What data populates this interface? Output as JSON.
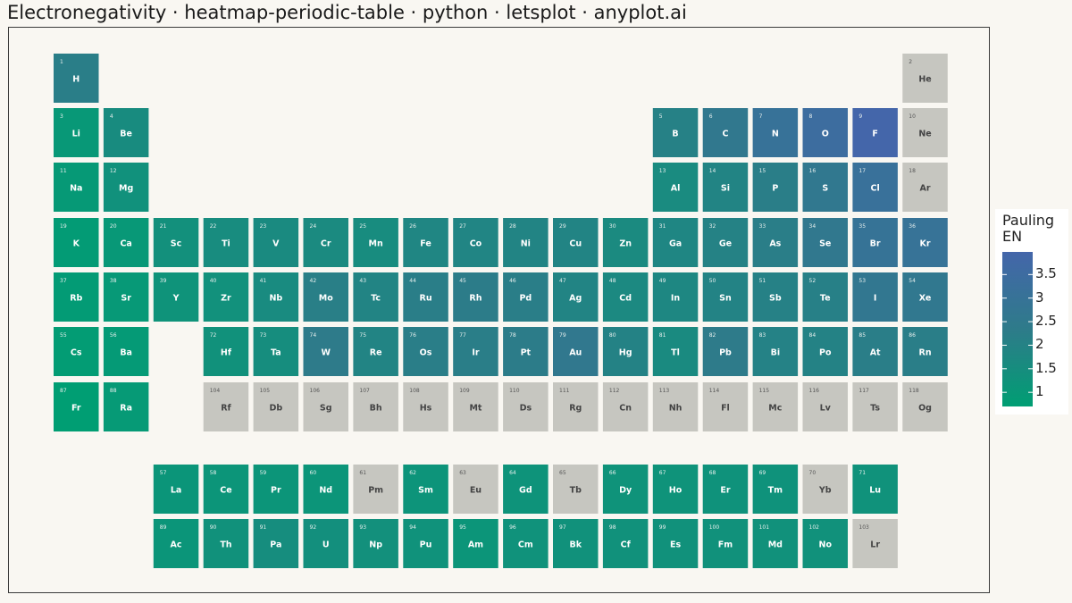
{
  "title": "Electronegativity · heatmap-periodic-table · python · letsplot · anyplot.ai",
  "colors": {
    "low": "#009e73",
    "mid": "#2e7b8a",
    "high": "#4466aa",
    "missing": "#c6c6c0",
    "background": "#f9f7f2"
  },
  "legend": {
    "title_line1": "Pauling",
    "title_line2": "EN",
    "ticks": [
      "3.5",
      "3",
      "2.5",
      "2",
      "1.5",
      "1"
    ],
    "range": [
      0.7,
      3.98
    ]
  },
  "chart_data": {
    "type": "heatmap",
    "title": "Electronegativity · heatmap-periodic-table · python · letsplot · anyplot.ai",
    "value_label": "Pauling EN",
    "elements": [
      {
        "z": 1,
        "s": "H",
        "row": 1,
        "col": 1,
        "en": 2.2
      },
      {
        "z": 2,
        "s": "He",
        "row": 1,
        "col": 18,
        "en": null
      },
      {
        "z": 3,
        "s": "Li",
        "row": 2,
        "col": 1,
        "en": 0.98
      },
      {
        "z": 4,
        "s": "Be",
        "row": 2,
        "col": 2,
        "en": 1.57
      },
      {
        "z": 5,
        "s": "B",
        "row": 2,
        "col": 13,
        "en": 2.04
      },
      {
        "z": 6,
        "s": "C",
        "row": 2,
        "col": 14,
        "en": 2.55
      },
      {
        "z": 7,
        "s": "N",
        "row": 2,
        "col": 15,
        "en": 3.04
      },
      {
        "z": 8,
        "s": "O",
        "row": 2,
        "col": 16,
        "en": 3.44
      },
      {
        "z": 9,
        "s": "F",
        "row": 2,
        "col": 17,
        "en": 3.98
      },
      {
        "z": 10,
        "s": "Ne",
        "row": 2,
        "col": 18,
        "en": null
      },
      {
        "z": 11,
        "s": "Na",
        "row": 3,
        "col": 1,
        "en": 0.93
      },
      {
        "z": 12,
        "s": "Mg",
        "row": 3,
        "col": 2,
        "en": 1.31
      },
      {
        "z": 13,
        "s": "Al",
        "row": 3,
        "col": 13,
        "en": 1.61
      },
      {
        "z": 14,
        "s": "Si",
        "row": 3,
        "col": 14,
        "en": 1.9
      },
      {
        "z": 15,
        "s": "P",
        "row": 3,
        "col": 15,
        "en": 2.19
      },
      {
        "z": 16,
        "s": "S",
        "row": 3,
        "col": 16,
        "en": 2.58
      },
      {
        "z": 17,
        "s": "Cl",
        "row": 3,
        "col": 17,
        "en": 3.16
      },
      {
        "z": 18,
        "s": "Ar",
        "row": 3,
        "col": 18,
        "en": null
      },
      {
        "z": 19,
        "s": "K",
        "row": 4,
        "col": 1,
        "en": 0.82
      },
      {
        "z": 20,
        "s": "Ca",
        "row": 4,
        "col": 2,
        "en": 1.0
      },
      {
        "z": 21,
        "s": "Sc",
        "row": 4,
        "col": 3,
        "en": 1.36
      },
      {
        "z": 22,
        "s": "Ti",
        "row": 4,
        "col": 4,
        "en": 1.54
      },
      {
        "z": 23,
        "s": "V",
        "row": 4,
        "col": 5,
        "en": 1.63
      },
      {
        "z": 24,
        "s": "Cr",
        "row": 4,
        "col": 6,
        "en": 1.66
      },
      {
        "z": 25,
        "s": "Mn",
        "row": 4,
        "col": 7,
        "en": 1.55
      },
      {
        "z": 26,
        "s": "Fe",
        "row": 4,
        "col": 8,
        "en": 1.83
      },
      {
        "z": 27,
        "s": "Co",
        "row": 4,
        "col": 9,
        "en": 1.88
      },
      {
        "z": 28,
        "s": "Ni",
        "row": 4,
        "col": 10,
        "en": 1.91
      },
      {
        "z": 29,
        "s": "Cu",
        "row": 4,
        "col": 11,
        "en": 1.9
      },
      {
        "z": 30,
        "s": "Zn",
        "row": 4,
        "col": 12,
        "en": 1.65
      },
      {
        "z": 31,
        "s": "Ga",
        "row": 4,
        "col": 13,
        "en": 1.81
      },
      {
        "z": 32,
        "s": "Ge",
        "row": 4,
        "col": 14,
        "en": 2.01
      },
      {
        "z": 33,
        "s": "As",
        "row": 4,
        "col": 15,
        "en": 2.18
      },
      {
        "z": 34,
        "s": "Se",
        "row": 4,
        "col": 16,
        "en": 2.55
      },
      {
        "z": 35,
        "s": "Br",
        "row": 4,
        "col": 17,
        "en": 2.96
      },
      {
        "z": 36,
        "s": "Kr",
        "row": 4,
        "col": 18,
        "en": 3.0
      },
      {
        "z": 37,
        "s": "Rb",
        "row": 5,
        "col": 1,
        "en": 0.82
      },
      {
        "z": 38,
        "s": "Sr",
        "row": 5,
        "col": 2,
        "en": 0.95
      },
      {
        "z": 39,
        "s": "Y",
        "row": 5,
        "col": 3,
        "en": 1.22
      },
      {
        "z": 40,
        "s": "Zr",
        "row": 5,
        "col": 4,
        "en": 1.33
      },
      {
        "z": 41,
        "s": "Nb",
        "row": 5,
        "col": 5,
        "en": 1.6
      },
      {
        "z": 42,
        "s": "Mo",
        "row": 5,
        "col": 6,
        "en": 2.16
      },
      {
        "z": 43,
        "s": "Tc",
        "row": 5,
        "col": 7,
        "en": 1.9
      },
      {
        "z": 44,
        "s": "Ru",
        "row": 5,
        "col": 8,
        "en": 2.2
      },
      {
        "z": 45,
        "s": "Rh",
        "row": 5,
        "col": 9,
        "en": 2.28
      },
      {
        "z": 46,
        "s": "Pd",
        "row": 5,
        "col": 10,
        "en": 2.2
      },
      {
        "z": 47,
        "s": "Ag",
        "row": 5,
        "col": 11,
        "en": 1.93
      },
      {
        "z": 48,
        "s": "Cd",
        "row": 5,
        "col": 12,
        "en": 1.69
      },
      {
        "z": 49,
        "s": "In",
        "row": 5,
        "col": 13,
        "en": 1.78
      },
      {
        "z": 50,
        "s": "Sn",
        "row": 5,
        "col": 14,
        "en": 1.96
      },
      {
        "z": 51,
        "s": "Sb",
        "row": 5,
        "col": 15,
        "en": 2.05
      },
      {
        "z": 52,
        "s": "Te",
        "row": 5,
        "col": 16,
        "en": 2.1
      },
      {
        "z": 53,
        "s": "I",
        "row": 5,
        "col": 17,
        "en": 2.66
      },
      {
        "z": 54,
        "s": "Xe",
        "row": 5,
        "col": 18,
        "en": 2.6
      },
      {
        "z": 55,
        "s": "Cs",
        "row": 6,
        "col": 1,
        "en": 0.79
      },
      {
        "z": 56,
        "s": "Ba",
        "row": 6,
        "col": 2,
        "en": 0.89
      },
      {
        "z": 72,
        "s": "Hf",
        "row": 6,
        "col": 4,
        "en": 1.3
      },
      {
        "z": 73,
        "s": "Ta",
        "row": 6,
        "col": 5,
        "en": 1.5
      },
      {
        "z": 74,
        "s": "W",
        "row": 6,
        "col": 6,
        "en": 2.36
      },
      {
        "z": 75,
        "s": "Re",
        "row": 6,
        "col": 7,
        "en": 1.9
      },
      {
        "z": 76,
        "s": "Os",
        "row": 6,
        "col": 8,
        "en": 2.2
      },
      {
        "z": 77,
        "s": "Ir",
        "row": 6,
        "col": 9,
        "en": 2.2
      },
      {
        "z": 78,
        "s": "Pt",
        "row": 6,
        "col": 10,
        "en": 2.28
      },
      {
        "z": 79,
        "s": "Au",
        "row": 6,
        "col": 11,
        "en": 2.54
      },
      {
        "z": 80,
        "s": "Hg",
        "row": 6,
        "col": 12,
        "en": 2.0
      },
      {
        "z": 81,
        "s": "Tl",
        "row": 6,
        "col": 13,
        "en": 1.62
      },
      {
        "z": 82,
        "s": "Pb",
        "row": 6,
        "col": 14,
        "en": 2.33
      },
      {
        "z": 83,
        "s": "Bi",
        "row": 6,
        "col": 15,
        "en": 2.02
      },
      {
        "z": 84,
        "s": "Po",
        "row": 6,
        "col": 16,
        "en": 2.0
      },
      {
        "z": 85,
        "s": "At",
        "row": 6,
        "col": 17,
        "en": 2.2
      },
      {
        "z": 86,
        "s": "Rn",
        "row": 6,
        "col": 18,
        "en": 2.2
      },
      {
        "z": 87,
        "s": "Fr",
        "row": 7,
        "col": 1,
        "en": 0.7
      },
      {
        "z": 88,
        "s": "Ra",
        "row": 7,
        "col": 2,
        "en": 0.9
      },
      {
        "z": 104,
        "s": "Rf",
        "row": 7,
        "col": 4,
        "en": null
      },
      {
        "z": 105,
        "s": "Db",
        "row": 7,
        "col": 5,
        "en": null
      },
      {
        "z": 106,
        "s": "Sg",
        "row": 7,
        "col": 6,
        "en": null
      },
      {
        "z": 107,
        "s": "Bh",
        "row": 7,
        "col": 7,
        "en": null
      },
      {
        "z": 108,
        "s": "Hs",
        "row": 7,
        "col": 8,
        "en": null
      },
      {
        "z": 109,
        "s": "Mt",
        "row": 7,
        "col": 9,
        "en": null
      },
      {
        "z": 110,
        "s": "Ds",
        "row": 7,
        "col": 10,
        "en": null
      },
      {
        "z": 111,
        "s": "Rg",
        "row": 7,
        "col": 11,
        "en": null
      },
      {
        "z": 112,
        "s": "Cn",
        "row": 7,
        "col": 12,
        "en": null
      },
      {
        "z": 113,
        "s": "Nh",
        "row": 7,
        "col": 13,
        "en": null
      },
      {
        "z": 114,
        "s": "Fl",
        "row": 7,
        "col": 14,
        "en": null
      },
      {
        "z": 115,
        "s": "Mc",
        "row": 7,
        "col": 15,
        "en": null
      },
      {
        "z": 116,
        "s": "Lv",
        "row": 7,
        "col": 16,
        "en": null
      },
      {
        "z": 117,
        "s": "Ts",
        "row": 7,
        "col": 17,
        "en": null
      },
      {
        "z": 118,
        "s": "Og",
        "row": 7,
        "col": 18,
        "en": null
      },
      {
        "z": 57,
        "s": "La",
        "row": 9,
        "col": 3,
        "en": 1.1
      },
      {
        "z": 58,
        "s": "Ce",
        "row": 9,
        "col": 4,
        "en": 1.12
      },
      {
        "z": 59,
        "s": "Pr",
        "row": 9,
        "col": 5,
        "en": 1.13
      },
      {
        "z": 60,
        "s": "Nd",
        "row": 9,
        "col": 6,
        "en": 1.14
      },
      {
        "z": 61,
        "s": "Pm",
        "row": 9,
        "col": 7,
        "en": null
      },
      {
        "z": 62,
        "s": "Sm",
        "row": 9,
        "col": 8,
        "en": 1.17
      },
      {
        "z": 63,
        "s": "Eu",
        "row": 9,
        "col": 9,
        "en": null
      },
      {
        "z": 64,
        "s": "Gd",
        "row": 9,
        "col": 10,
        "en": 1.2
      },
      {
        "z": 65,
        "s": "Tb",
        "row": 9,
        "col": 11,
        "en": null
      },
      {
        "z": 66,
        "s": "Dy",
        "row": 9,
        "col": 12,
        "en": 1.22
      },
      {
        "z": 67,
        "s": "Ho",
        "row": 9,
        "col": 13,
        "en": 1.23
      },
      {
        "z": 68,
        "s": "Er",
        "row": 9,
        "col": 14,
        "en": 1.24
      },
      {
        "z": 69,
        "s": "Tm",
        "row": 9,
        "col": 15,
        "en": 1.25
      },
      {
        "z": 70,
        "s": "Yb",
        "row": 9,
        "col": 16,
        "en": null
      },
      {
        "z": 71,
        "s": "Lu",
        "row": 9,
        "col": 17,
        "en": 1.27
      },
      {
        "z": 89,
        "s": "Ac",
        "row": 10,
        "col": 3,
        "en": 1.1
      },
      {
        "z": 90,
        "s": "Th",
        "row": 10,
        "col": 4,
        "en": 1.3
      },
      {
        "z": 91,
        "s": "Pa",
        "row": 10,
        "col": 5,
        "en": 1.5
      },
      {
        "z": 92,
        "s": "U",
        "row": 10,
        "col": 6,
        "en": 1.38
      },
      {
        "z": 93,
        "s": "Np",
        "row": 10,
        "col": 7,
        "en": 1.36
      },
      {
        "z": 94,
        "s": "Pu",
        "row": 10,
        "col": 8,
        "en": 1.28
      },
      {
        "z": 95,
        "s": "Am",
        "row": 10,
        "col": 9,
        "en": 1.13
      },
      {
        "z": 96,
        "s": "Cm",
        "row": 10,
        "col": 10,
        "en": 1.28
      },
      {
        "z": 97,
        "s": "Bk",
        "row": 10,
        "col": 11,
        "en": 1.3
      },
      {
        "z": 98,
        "s": "Cf",
        "row": 10,
        "col": 12,
        "en": 1.3
      },
      {
        "z": 99,
        "s": "Es",
        "row": 10,
        "col": 13,
        "en": 1.3
      },
      {
        "z": 100,
        "s": "Fm",
        "row": 10,
        "col": 14,
        "en": 1.3
      },
      {
        "z": 101,
        "s": "Md",
        "row": 10,
        "col": 15,
        "en": 1.3
      },
      {
        "z": 102,
        "s": "No",
        "row": 10,
        "col": 16,
        "en": 1.3
      },
      {
        "z": 103,
        "s": "Lr",
        "row": 10,
        "col": 17,
        "en": null
      }
    ]
  }
}
